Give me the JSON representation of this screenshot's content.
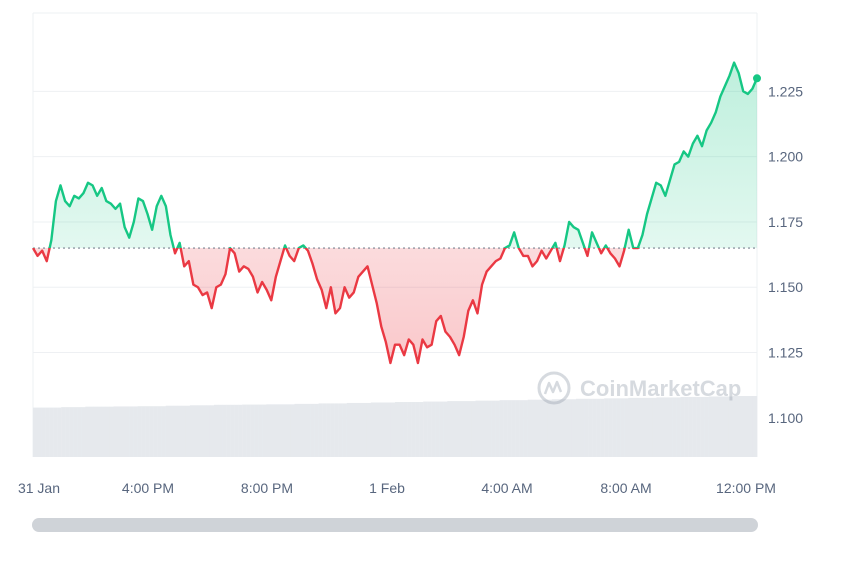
{
  "chart_data": {
    "type": "area",
    "title": "",
    "xlabel": "",
    "ylabel": "",
    "ylim": [
      1.085,
      1.255
    ],
    "y_ticks": [
      "1.100",
      "1.125",
      "1.150",
      "1.175",
      "1.200",
      "1.225"
    ],
    "x_ticks": [
      "31 Jan",
      "4:00 PM",
      "8:00 PM",
      "1 Feb",
      "4:00 AM",
      "8:00 AM",
      "12:00 PM"
    ],
    "x_start": "31 Jan 12:00 PM",
    "x_end": "1 Feb 12:00 PM",
    "baseline": 1.165,
    "line_color_up": "#16c784",
    "line_color_down": "#ea3943",
    "volume_color": "#e6e9ed",
    "grid": true,
    "watermark": "CoinMarketCap",
    "series": [
      {
        "values": [
          1.165,
          1.162,
          1.164,
          1.16,
          1.168,
          1.183,
          1.189,
          1.183,
          1.181,
          1.185,
          1.184,
          1.186,
          1.19,
          1.189,
          1.185,
          1.188,
          1.183,
          1.182,
          1.18,
          1.182,
          1.173,
          1.169,
          1.175,
          1.184,
          1.183,
          1.178,
          1.172,
          1.181,
          1.185,
          1.181,
          1.17,
          1.163,
          1.167,
          1.158,
          1.16,
          1.151,
          1.15,
          1.147,
          1.148,
          1.142,
          1.15,
          1.151,
          1.155,
          1.165,
          1.163,
          1.156,
          1.158,
          1.157,
          1.154,
          1.148,
          1.152,
          1.149,
          1.145,
          1.154,
          1.16,
          1.166,
          1.162,
          1.16,
          1.165,
          1.166,
          1.164,
          1.159,
          1.153,
          1.149,
          1.142,
          1.15,
          1.14,
          1.142,
          1.15,
          1.146,
          1.148,
          1.154,
          1.156,
          1.158,
          1.151,
          1.144,
          1.135,
          1.129,
          1.121,
          1.128,
          1.128,
          1.124,
          1.13,
          1.128,
          1.121,
          1.13,
          1.127,
          1.128,
          1.137,
          1.139,
          1.133,
          1.131,
          1.128,
          1.124,
          1.131,
          1.141,
          1.145,
          1.14,
          1.151,
          1.156,
          1.158,
          1.16,
          1.161,
          1.165,
          1.166,
          1.171,
          1.165,
          1.162,
          1.162,
          1.158,
          1.16,
          1.164,
          1.161,
          1.164,
          1.167,
          1.16,
          1.166,
          1.175,
          1.173,
          1.172,
          1.167,
          1.162,
          1.171,
          1.167,
          1.163,
          1.166,
          1.163,
          1.161,
          1.158,
          1.164,
          1.172,
          1.165,
          1.165,
          1.17,
          1.178,
          1.184,
          1.19,
          1.189,
          1.185,
          1.191,
          1.197,
          1.198,
          1.202,
          1.2,
          1.205,
          1.208,
          1.204,
          1.21,
          1.213,
          1.217,
          1.223,
          1.227,
          1.231,
          1.236,
          1.232,
          1.225,
          1.224,
          1.226,
          1.23
        ]
      }
    ],
    "volume_ratio": [
      0.5,
      0.52,
      0.54,
      0.55,
      0.56,
      0.58,
      0.6,
      0.62,
      0.63,
      0.64,
      0.66,
      0.68,
      0.7,
      0.72,
      0.74,
      0.76,
      0.78,
      0.8,
      0.82,
      0.84,
      0.86,
      0.88,
      0.9,
      0.92,
      0.94,
      0.96,
      0.98,
      1.0
    ]
  }
}
